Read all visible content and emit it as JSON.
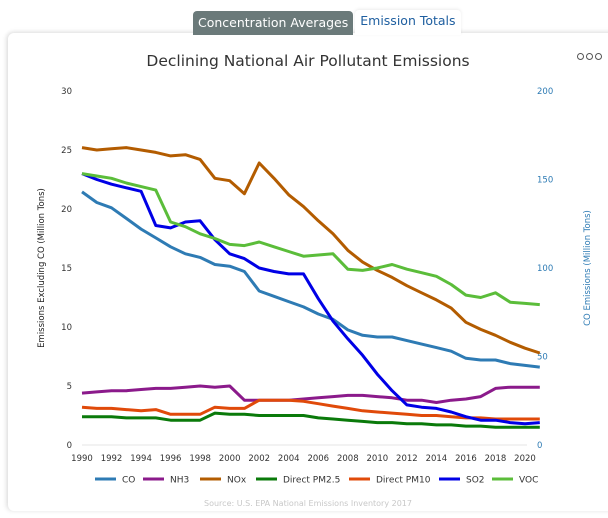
{
  "tabs": [
    {
      "label": "Concentration Averages",
      "active": false
    },
    {
      "label": "Emission Totals",
      "active": true
    }
  ],
  "menu_icon": "ellipsis-icon",
  "source": "Source: U.S. EPA National Emissions Inventory 2017",
  "chart_data": {
    "type": "line",
    "title": "Declining National Air Pollutant Emissions",
    "xlabel": "",
    "ylabel": "Emissions Excluding CO (Million Tons)",
    "y2label": "CO Emissions (Million Tons)",
    "xlim": [
      1990,
      2021
    ],
    "ylim": [
      0,
      30
    ],
    "y2lim": [
      0,
      200
    ],
    "x_ticks": [
      "1990",
      "1992",
      "1994",
      "1996",
      "1998",
      "2000",
      "2002",
      "2004",
      "2006",
      "2008",
      "2010",
      "2012",
      "2014",
      "2016",
      "2018",
      "2020"
    ],
    "y_ticks": [
      "0",
      "5",
      "10",
      "15",
      "20",
      "25",
      "30"
    ],
    "y2_ticks": [
      "0",
      "50",
      "100",
      "150",
      "200"
    ],
    "grid": false,
    "legend_position": "bottom",
    "x": [
      1990,
      1991,
      1992,
      1993,
      1994,
      1995,
      1996,
      1997,
      1998,
      1999,
      2000,
      2001,
      2002,
      2003,
      2004,
      2005,
      2006,
      2007,
      2008,
      2009,
      2010,
      2011,
      2012,
      2013,
      2014,
      2015,
      2016,
      2017,
      2018,
      2019,
      2020,
      2021
    ],
    "series": [
      {
        "name": "CO",
        "axis": "right",
        "color": "#2e7bb4",
        "values": [
          143,
          137,
          134,
          128,
          122,
          117,
          112,
          108,
          106,
          102,
          101,
          98,
          87,
          84,
          81,
          78,
          74,
          71,
          65,
          62,
          61,
          61,
          59,
          57,
          55,
          53,
          49,
          48,
          48,
          46,
          45,
          44
        ]
      },
      {
        "name": "NH3",
        "axis": "left",
        "color": "#8b1a8b",
        "values": [
          4.4,
          4.5,
          4.6,
          4.6,
          4.7,
          4.8,
          4.8,
          4.9,
          5.0,
          4.9,
          5.0,
          3.8,
          3.8,
          3.8,
          3.8,
          3.9,
          4.0,
          4.1,
          4.2,
          4.2,
          4.1,
          4.0,
          3.8,
          3.8,
          3.6,
          3.8,
          3.9,
          4.1,
          4.8,
          4.9,
          4.9,
          4.9
        ]
      },
      {
        "name": "NOx",
        "axis": "left",
        "color": "#b35c00",
        "values": [
          25.2,
          25.0,
          25.1,
          25.2,
          25.0,
          24.8,
          24.5,
          24.6,
          24.2,
          22.6,
          22.4,
          21.3,
          23.9,
          22.6,
          21.2,
          20.2,
          19.0,
          17.9,
          16.5,
          15.5,
          14.8,
          14.2,
          13.5,
          12.9,
          12.3,
          11.6,
          10.4,
          9.8,
          9.3,
          8.7,
          8.2,
          7.8
        ]
      },
      {
        "name": "Direct PM2.5",
        "axis": "left",
        "color": "#0a7a0a",
        "values": [
          2.4,
          2.4,
          2.4,
          2.3,
          2.3,
          2.3,
          2.1,
          2.1,
          2.1,
          2.7,
          2.6,
          2.6,
          2.5,
          2.5,
          2.5,
          2.5,
          2.3,
          2.2,
          2.1,
          2.0,
          1.9,
          1.9,
          1.8,
          1.8,
          1.7,
          1.7,
          1.6,
          1.6,
          1.5,
          1.5,
          1.5,
          1.5
        ]
      },
      {
        "name": "Direct PM10",
        "axis": "left",
        "color": "#e04a0a",
        "values": [
          3.2,
          3.1,
          3.1,
          3.0,
          2.9,
          3.0,
          2.6,
          2.6,
          2.6,
          3.2,
          3.1,
          3.1,
          3.8,
          3.8,
          3.8,
          3.7,
          3.5,
          3.3,
          3.1,
          2.9,
          2.8,
          2.7,
          2.6,
          2.5,
          2.5,
          2.4,
          2.3,
          2.3,
          2.2,
          2.2,
          2.2,
          2.2
        ]
      },
      {
        "name": "SO2",
        "axis": "left",
        "color": "#0000e6",
        "values": [
          23.0,
          22.5,
          22.1,
          21.8,
          21.5,
          18.6,
          18.4,
          18.9,
          19.0,
          17.4,
          16.2,
          15.8,
          15.0,
          14.7,
          14.5,
          14.5,
          12.4,
          10.5,
          9.0,
          7.6,
          6.0,
          4.6,
          3.4,
          3.2,
          3.1,
          2.8,
          2.4,
          2.1,
          2.1,
          1.9,
          1.8,
          1.9
        ]
      },
      {
        "name": "VOC",
        "axis": "left",
        "color": "#5bbd3a",
        "values": [
          23.0,
          22.8,
          22.6,
          22.2,
          21.9,
          21.6,
          18.9,
          18.5,
          17.9,
          17.5,
          17.0,
          16.9,
          17.2,
          16.8,
          16.4,
          16.0,
          16.1,
          16.2,
          14.9,
          14.8,
          15.0,
          15.3,
          14.9,
          14.6,
          14.3,
          13.6,
          12.7,
          12.5,
          12.9,
          12.1,
          12.0,
          11.9
        ]
      }
    ]
  }
}
